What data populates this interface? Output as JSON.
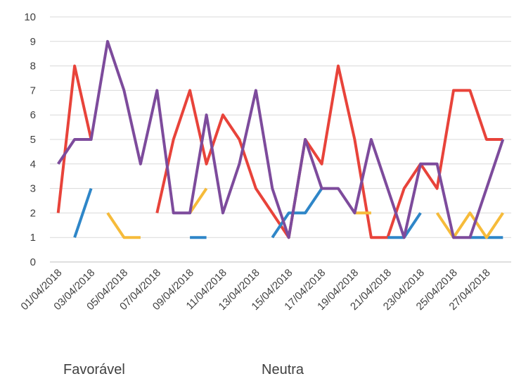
{
  "chart_data": {
    "type": "line",
    "title": "",
    "xlabel": "",
    "ylabel": "",
    "ylim": [
      0,
      10
    ],
    "yticks": [
      0,
      1,
      2,
      3,
      4,
      5,
      6,
      7,
      8,
      9,
      10
    ],
    "grid": true,
    "x": [
      "01/04/2018",
      "02/04/2018",
      "03/04/2018",
      "04/04/2018",
      "05/04/2018",
      "06/04/2018",
      "07/04/2018",
      "08/04/2018",
      "09/04/2018",
      "10/04/2018",
      "11/04/2018",
      "12/04/2018",
      "13/04/2018",
      "14/04/2018",
      "15/04/2018",
      "16/04/2018",
      "17/04/2018",
      "18/04/2018",
      "19/04/2018",
      "20/04/2018",
      "21/04/2018",
      "22/04/2018",
      "23/04/2018",
      "24/04/2018",
      "25/04/2018",
      "26/04/2018",
      "27/04/2018",
      "28/04/2018"
    ],
    "xtick_labels": [
      "01/04/2018",
      "03/04/2018",
      "05/04/2018",
      "07/04/2018",
      "09/04/2018",
      "11/04/2018",
      "13/04/2018",
      "15/04/2018",
      "17/04/2018",
      "19/04/2018",
      "21/04/2018",
      "23/04/2018",
      "25/04/2018",
      "27/04/2018"
    ],
    "legend_position": "bottom",
    "series": [
      {
        "name": "",
        "color": "#e8433a",
        "values": [
          2,
          8,
          5,
          null,
          null,
          null,
          2,
          5,
          7,
          4,
          6,
          5,
          3,
          2,
          1,
          5,
          4,
          8,
          5,
          1,
          1,
          3,
          4,
          3,
          7,
          7,
          5,
          5
        ]
      },
      {
        "name": "",
        "color": "#2e86c8",
        "values": [
          null,
          1,
          3,
          null,
          null,
          null,
          null,
          null,
          1,
          1,
          null,
          null,
          null,
          1,
          2,
          2,
          3,
          null,
          null,
          null,
          1,
          1,
          2,
          null,
          null,
          1,
          1,
          1
        ]
      },
      {
        "name": "",
        "color": "#f6bb3a",
        "values": [
          null,
          null,
          null,
          2,
          1,
          1,
          null,
          null,
          2,
          3,
          null,
          null,
          null,
          null,
          null,
          null,
          null,
          null,
          2,
          2,
          null,
          null,
          null,
          2,
          1,
          2,
          1,
          2
        ]
      },
      {
        "name": "",
        "color": "#7d4b9c",
        "values": [
          4,
          5,
          5,
          9,
          7,
          4,
          7,
          2,
          2,
          6,
          2,
          4,
          7,
          3,
          1,
          5,
          3,
          3,
          2,
          5,
          3,
          1,
          4,
          4,
          1,
          1,
          3,
          5
        ]
      }
    ]
  },
  "legend": {
    "favoravel": "Favorável",
    "neutra": "Neutra"
  }
}
